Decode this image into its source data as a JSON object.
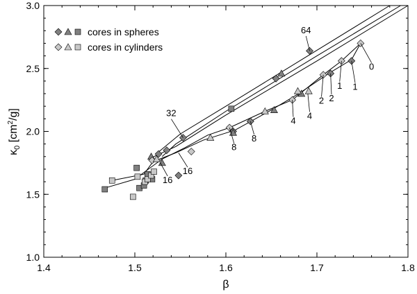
{
  "chart_data": {
    "type": "scatter",
    "xlabel": "β",
    "ylabel": "κ0 [cm2/g]",
    "ylabel_parts": {
      "kappa": "κ",
      "sub": "0",
      "bracket_open": " [cm",
      "sup": "2",
      "bracket_close": "/g]"
    },
    "xlim": [
      1.4,
      1.8
    ],
    "ylim": [
      1.0,
      3.0
    ],
    "xticks": [
      "1.4",
      "1.5",
      "1.6",
      "1.7",
      "1.8"
    ],
    "yticks": [
      "1.0",
      "1.5",
      "2.0",
      "2.5",
      "3.0"
    ],
    "legend": {
      "position": "top-left",
      "entries": [
        {
          "label": "cores in spheres",
          "color": "#808080"
        },
        {
          "label": "cores in cylinders",
          "color": "#c8c8c8"
        }
      ]
    },
    "colors": {
      "spheres": "#808080",
      "cylinders": "#c8c8c8",
      "line": "#000000"
    },
    "series": [
      {
        "marker": "diamond",
        "group": "spheres",
        "x": [
          1.692,
          1.553,
          1.526,
          1.548,
          1.655,
          1.715,
          1.738,
          1.627,
          1.608,
          1.535
        ],
        "y": [
          2.64,
          1.95,
          1.82,
          1.65,
          2.42,
          2.46,
          2.56,
          2.08,
          2.0,
          1.85
        ]
      },
      {
        "marker": "triangle",
        "group": "spheres",
        "x": [
          1.661,
          1.608,
          1.53,
          1.653,
          1.683,
          1.518
        ],
        "y": [
          2.46,
          1.99,
          1.75,
          2.17,
          2.3,
          1.8
        ]
      },
      {
        "marker": "square",
        "group": "spheres",
        "x": [
          1.606,
          1.467,
          1.502,
          1.505,
          1.51,
          1.512,
          1.514,
          1.519
        ],
        "y": [
          2.18,
          1.54,
          1.71,
          1.55,
          1.57,
          1.61,
          1.66,
          1.62
        ]
      },
      {
        "marker": "diamond",
        "group": "cylinders",
        "x": [
          1.748,
          1.727,
          1.707,
          1.673,
          1.604,
          1.519,
          1.562
        ],
        "y": [
          2.7,
          2.56,
          2.45,
          2.25,
          2.03,
          1.77,
          1.84
        ]
      },
      {
        "marker": "triangle",
        "group": "cylinders",
        "x": [
          1.679,
          1.691,
          1.643,
          1.583,
          1.524
        ],
        "y": [
          2.32,
          2.32,
          2.16,
          1.95,
          1.78
        ]
      },
      {
        "marker": "square",
        "group": "cylinders",
        "x": [
          1.475,
          1.498,
          1.503,
          1.511,
          1.514,
          1.518,
          1.521
        ],
        "y": [
          1.61,
          1.48,
          1.64,
          1.6,
          1.62,
          1.65,
          1.68
        ]
      }
    ],
    "curves": [
      {
        "x": [
          1.78,
          1.69,
          1.6,
          1.55,
          1.525
        ],
        "y": [
          3.0,
          2.6,
          2.2,
          1.98,
          1.83
        ]
      },
      {
        "x": [
          1.792,
          1.7,
          1.6,
          1.545,
          1.53
        ],
        "y": [
          3.0,
          2.6,
          2.16,
          1.9,
          1.8
        ]
      },
      {
        "x": [
          1.8,
          1.7,
          1.6,
          1.545,
          1.515
        ],
        "y": [
          3.0,
          2.56,
          2.13,
          1.88,
          1.78
        ]
      },
      {
        "x": [
          1.748,
          1.738,
          1.715,
          1.68,
          1.65,
          1.61,
          1.575,
          1.545,
          1.52,
          1.51,
          1.475
        ],
        "y": [
          2.7,
          2.57,
          2.47,
          2.3,
          2.17,
          2.01,
          1.93,
          1.83,
          1.76,
          1.66,
          1.61
        ]
      },
      {
        "x": [
          1.748,
          1.727,
          1.707,
          1.673,
          1.643,
          1.604,
          1.58,
          1.555,
          1.53,
          1.515,
          1.5,
          1.467
        ],
        "y": [
          2.7,
          2.56,
          2.45,
          2.25,
          2.16,
          2.03,
          1.97,
          1.87,
          1.78,
          1.7,
          1.62,
          1.55
        ]
      }
    ],
    "annotations": [
      {
        "text": "64",
        "x": 1.69,
        "y": 2.69,
        "px": 1.692,
        "py": 2.64,
        "tx": 1.688,
        "ty": 2.78
      },
      {
        "text": "32",
        "x": 1.553,
        "y": 1.95,
        "px": 1.553,
        "py": 1.95,
        "tx": 1.54,
        "ty": 2.12
      },
      {
        "text": "16",
        "x": 1.548,
        "y": 1.65,
        "px": 1.548,
        "py": 1.83,
        "tx": 1.558,
        "ty": 1.66
      },
      {
        "text": "16",
        "x": 1.53,
        "y": 1.75,
        "px": 1.528,
        "py": 1.75,
        "tx": 1.536,
        "ty": 1.59
      },
      {
        "text": "8",
        "x": 1.627,
        "y": 2.08,
        "px": 1.627,
        "py": 2.08,
        "tx": 1.631,
        "ty": 1.92
      },
      {
        "text": "8",
        "x": 1.604,
        "y": 2.03,
        "px": 1.604,
        "py": 2.03,
        "tx": 1.609,
        "ty": 1.85
      },
      {
        "text": "4",
        "x": 1.69,
        "y": 2.3,
        "px": 1.69,
        "py": 2.3,
        "tx": 1.692,
        "ty": 2.1
      },
      {
        "text": "4",
        "x": 1.673,
        "y": 2.25,
        "px": 1.673,
        "py": 2.25,
        "tx": 1.674,
        "ty": 2.06
      },
      {
        "text": "2",
        "x": 1.715,
        "y": 2.46,
        "px": 1.715,
        "py": 2.46,
        "tx": 1.716,
        "ty": 2.24
      },
      {
        "text": "2",
        "x": 1.707,
        "y": 2.45,
        "px": 1.707,
        "py": 2.45,
        "tx": 1.705,
        "ty": 2.22
      },
      {
        "text": "1",
        "x": 1.738,
        "y": 2.56,
        "px": 1.738,
        "py": 2.56,
        "tx": 1.742,
        "ty": 2.33
      },
      {
        "text": "1",
        "x": 1.727,
        "y": 2.56,
        "px": 1.727,
        "py": 2.56,
        "tx": 1.725,
        "ty": 2.34
      },
      {
        "text": "0",
        "x": 1.748,
        "y": 2.7,
        "px": 1.748,
        "py": 2.7,
        "tx": 1.76,
        "ty": 2.49
      }
    ],
    "grid": false
  }
}
